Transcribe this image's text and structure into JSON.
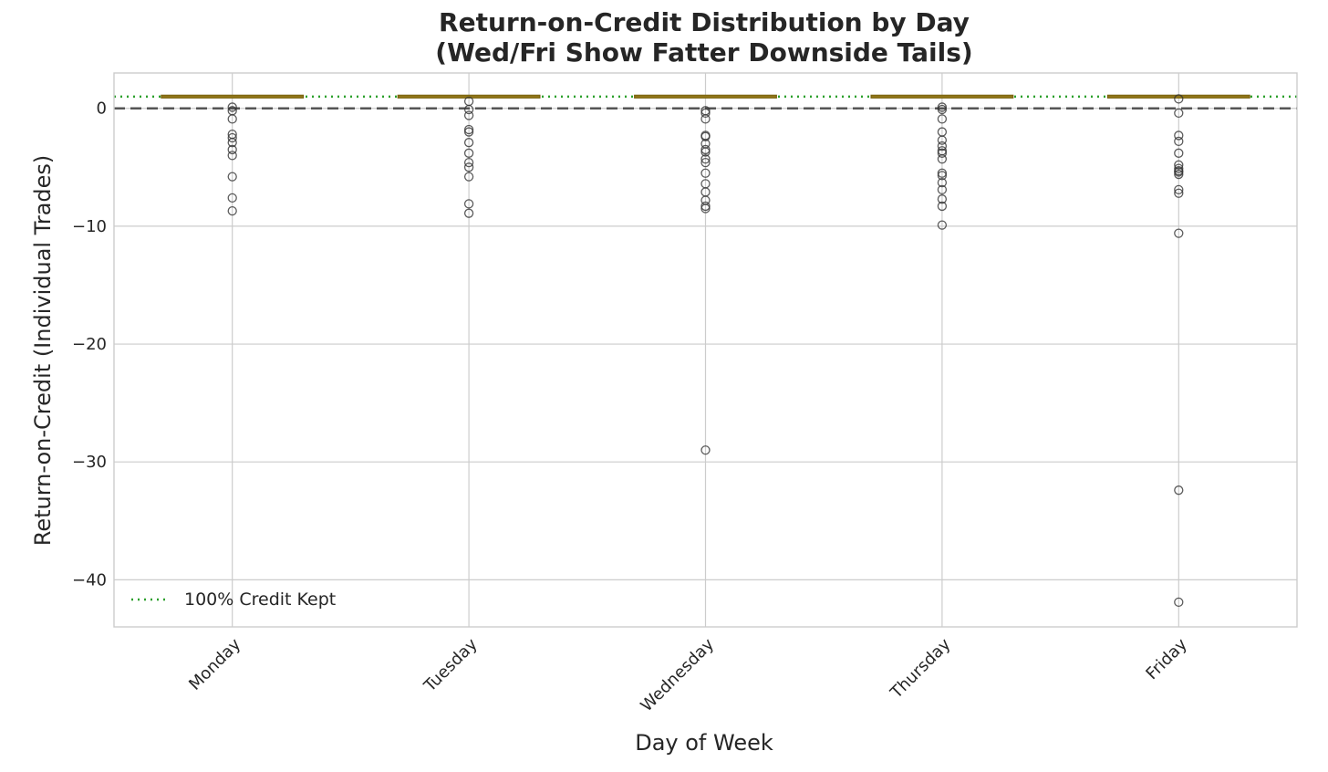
{
  "chart_data": {
    "type": "box",
    "title_lines": [
      "Return-on-Credit Distribution by Day",
      "(Wed/Fri Show Fatter Downside Tails)"
    ],
    "xlabel": "Day of Week",
    "ylabel": "Return-on-Credit (Individual Trades)",
    "categories": [
      "Monday",
      "Tuesday",
      "Wednesday",
      "Thursday",
      "Friday"
    ],
    "ylim": [
      -44,
      3
    ],
    "yticks": [
      0,
      -10,
      -20,
      -30,
      -40
    ],
    "ytick_labels": [
      "0",
      "−10",
      "−20",
      "−30",
      "−40"
    ],
    "grid": true,
    "legend": {
      "position": "bottom-left",
      "entries": [
        {
          "label": "100% Credit Kept",
          "style": "dotted",
          "color": "#2ca02c"
        }
      ]
    },
    "reference_lines": [
      {
        "y": 1,
        "style": "dotted",
        "color": "#2ca02c",
        "label": "100% Credit Kept"
      },
      {
        "y": 0,
        "style": "dashed",
        "color": "#555555"
      }
    ],
    "box_color": "#c9a227",
    "boxes": [
      {
        "category": "Monday",
        "q1": 1,
        "median": 1,
        "q3": 1,
        "whisker_low": 1,
        "whisker_high": 1,
        "outliers": [
          0.1,
          -0.2,
          -0.9,
          -2.2,
          -2.5,
          -2.9,
          -3.5,
          -4.0,
          -5.8,
          -7.6,
          -8.7
        ]
      },
      {
        "category": "Tuesday",
        "q1": 1,
        "median": 1,
        "q3": 1,
        "whisker_low": 1,
        "whisker_high": 1,
        "outliers": [
          0.6,
          -0.1,
          -0.6,
          -1.8,
          -2.0,
          -2.9,
          -3.8,
          -4.6,
          -5.0,
          -5.8,
          -8.1,
          -8.9
        ]
      },
      {
        "category": "Wednesday",
        "q1": 1,
        "median": 1,
        "q3": 1,
        "whisker_low": 1,
        "whisker_high": 1,
        "outliers": [
          -0.2,
          -0.4,
          -0.9,
          -2.3,
          -2.4,
          -3.0,
          -3.5,
          -3.7,
          -4.3,
          -4.6,
          -5.5,
          -6.4,
          -7.1,
          -7.8,
          -8.3,
          -8.5,
          -29.0
        ]
      },
      {
        "category": "Thursday",
        "q1": 1,
        "median": 1,
        "q3": 1,
        "whisker_low": 1,
        "whisker_high": 1,
        "outliers": [
          0.1,
          -0.1,
          -0.9,
          -2.0,
          -2.7,
          -3.2,
          -3.6,
          -3.8,
          -4.3,
          -5.5,
          -5.7,
          -6.3,
          -6.9,
          -7.7,
          -8.3,
          -9.9
        ]
      },
      {
        "category": "Friday",
        "q1": 1,
        "median": 1,
        "q3": 1,
        "whisker_low": 1,
        "whisker_high": 1,
        "outliers": [
          0.8,
          -0.4,
          -2.3,
          -2.8,
          -3.8,
          -4.8,
          -5.1,
          -5.3,
          -5.4,
          -5.6,
          -6.9,
          -7.2,
          -10.6,
          -32.4,
          -41.9
        ]
      }
    ]
  }
}
